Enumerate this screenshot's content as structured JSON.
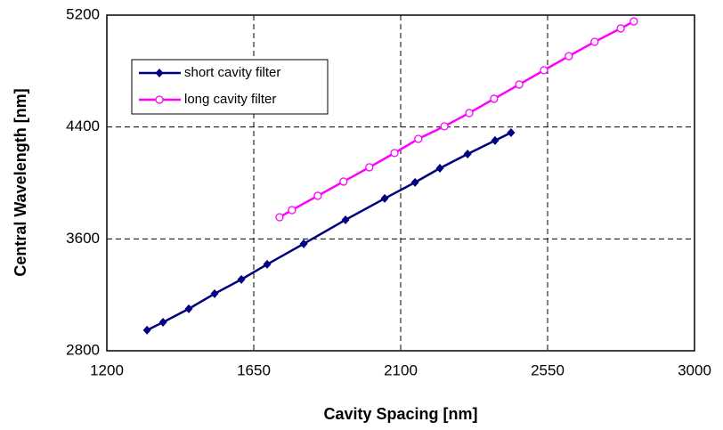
{
  "chart_data": {
    "type": "line",
    "xlabel": "Cavity Spacing [nm]",
    "ylabel": "Central Wavelength [nm]",
    "xlim": [
      1200,
      3000
    ],
    "xticks": [
      1200,
      1650,
      2100,
      2550,
      3000
    ],
    "ylim": [
      2800,
      5200
    ],
    "yticks": [
      2800,
      3600,
      4400,
      5200
    ],
    "grid": true,
    "legend": "upper left",
    "series": [
      {
        "name": "short cavity filter",
        "color": "#000080",
        "marker": "diamond",
        "x": [
          1323,
          1372,
          1451,
          1530,
          1612,
          1691,
          1803,
          1931,
          2051,
          2144,
          2220,
          2305,
          2389,
          2438
        ],
        "values": [
          2947,
          3004,
          3100,
          3208,
          3310,
          3418,
          3565,
          3736,
          3889,
          4004,
          4105,
          4207,
          4303,
          4360
        ]
      },
      {
        "name": "long cavity filter",
        "color": "#ff00ff",
        "marker": "circle",
        "x": [
          1729,
          1767,
          1846,
          1925,
          2004,
          2081,
          2154,
          2234,
          2310,
          2386,
          2463,
          2539,
          2615,
          2694,
          2774,
          2814
        ],
        "values": [
          3755,
          3806,
          3908,
          4010,
          4112,
          4214,
          4315,
          4405,
          4500,
          4602,
          4704,
          4806,
          4907,
          5009,
          5105,
          5155
        ]
      }
    ]
  }
}
